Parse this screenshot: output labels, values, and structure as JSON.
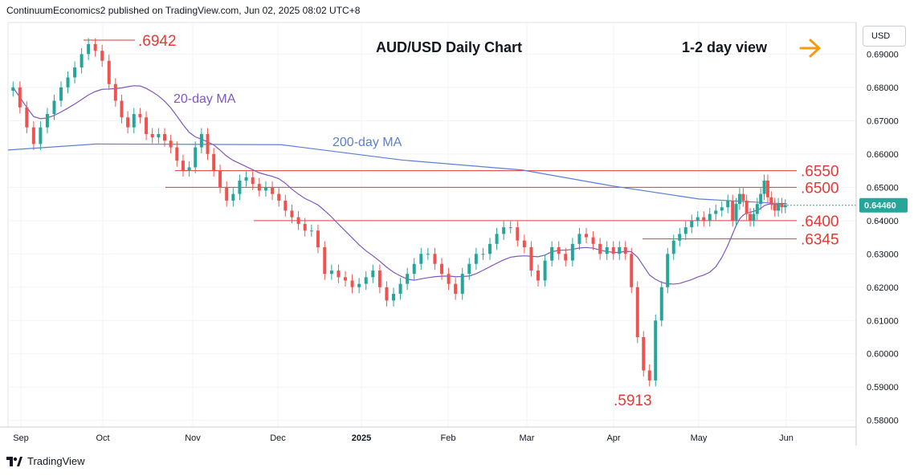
{
  "header": {
    "publisher": "ContinuumEconomics2 published on TradingView.com, Jun 02, 2025 08:02 UTC+8"
  },
  "footer": {
    "brand": "TradingView"
  },
  "currency": "USD",
  "colors": {
    "up": "#26a69a",
    "down": "#ef5350",
    "ma20": "#7e57c2",
    "ma200": "#5b7fd6",
    "level_line": "#e53935",
    "level_text": "#e53935",
    "arrow": "#f39c12",
    "price_badge": "#26a69a"
  },
  "chart_data": {
    "type": "candlestick",
    "title": "AUD/USD Daily Chart",
    "subtitle": "1-2 day view",
    "y_axis": {
      "ticks": [
        "0.69000",
        "0.68000",
        "0.67000",
        "0.66000",
        "0.65000",
        "0.64000",
        "0.63000",
        "0.62000",
        "0.61000",
        "0.60000",
        "0.59000",
        "0.58000"
      ],
      "range": [
        0.578,
        0.6995
      ]
    },
    "x_axis": {
      "ticks": [
        "Sep",
        "Oct",
        "Nov",
        "Dec",
        "2025",
        "Feb",
        "Mar",
        "Apr",
        "May",
        "Jun"
      ]
    },
    "last_price": "0.64460",
    "annotations": [
      {
        "label": ".6942",
        "value": 0.6942
      },
      {
        "label": ".6550",
        "value": 0.655
      },
      {
        "label": ".6500",
        "value": 0.65
      },
      {
        "label": ".6400",
        "value": 0.64
      },
      {
        "label": ".6345",
        "value": 0.6345
      },
      {
        "label": ".5913",
        "value": 0.5913
      }
    ],
    "series_labels": {
      "ma20": "20-day MA",
      "ma200": "200-day MA"
    },
    "closes_approx": [
      [
        0.68,
        0.674,
        0.668,
        0.663,
        0.668,
        0.672,
        0.676,
        0.68,
        0.683,
        0.686,
        0.69,
        0.693,
        0.691,
        0.688,
        0.681
      ],
      [
        0.676,
        0.671,
        0.668,
        0.672,
        0.671,
        0.666,
        0.665,
        0.666,
        0.664,
        0.662,
        0.658,
        0.655,
        0.656,
        0.662,
        0.666,
        0.66,
        0.655
      ],
      [
        0.65,
        0.646,
        0.648,
        0.652,
        0.653,
        0.651,
        0.649,
        0.65,
        0.648,
        0.646,
        0.643,
        0.641,
        0.639,
        0.637,
        0.637,
        0.632
      ],
      [
        0.624,
        0.625,
        0.623,
        0.622,
        0.62,
        0.621,
        0.623,
        0.625,
        0.62,
        0.616,
        0.618,
        0.621,
        0.624,
        0.627,
        0.63,
        0.63,
        0.627,
        0.624,
        0.621,
        0.618,
        0.624
      ],
      [
        0.627,
        0.63,
        0.63,
        0.633,
        0.636,
        0.638,
        0.638,
        0.634,
        0.632,
        0.625,
        0.622,
        0.628,
        0.632,
        0.63,
        0.628,
        0.633,
        0.636,
        0.635,
        0.633,
        0.63,
        0.632
      ],
      [
        0.63,
        0.632,
        0.63,
        0.62,
        0.605,
        0.595,
        0.592,
        0.61,
        0.62,
        0.63,
        0.634,
        0.636,
        0.638,
        0.64,
        0.641,
        0.64,
        0.642,
        0.643,
        0.644,
        0.646
      ],
      [
        0.64,
        0.645,
        0.648,
        0.646,
        0.642,
        0.64,
        0.642,
        0.645,
        0.648,
        0.652,
        0.647,
        0.645,
        0.643,
        0.645,
        0.644,
        0.6446
      ]
    ]
  }
}
